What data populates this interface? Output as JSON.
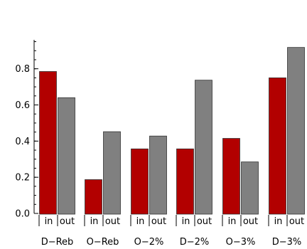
{
  "chart_data": {
    "type": "bar",
    "categories": [
      "D−Reb",
      "O−Reb",
      "O−2%",
      "D−2%",
      "O−3%",
      "D−3%"
    ],
    "series": [
      {
        "name": "in",
        "color": "#b20000",
        "values": [
          0.785,
          0.187,
          0.357,
          0.357,
          0.415,
          0.75
        ]
      },
      {
        "name": "out",
        "color": "#808080",
        "values": [
          0.64,
          0.452,
          0.428,
          0.737,
          0.285,
          0.918
        ]
      }
    ],
    "ylim": [
      0,
      0.96
    ],
    "yticks": [
      0.0,
      0.2,
      0.4,
      0.6,
      0.8
    ],
    "ytick_labels": [
      "0.0",
      "0.2",
      "0.4",
      "0.6",
      "0.8"
    ],
    "minor_tick_step": 0.05,
    "grid": false,
    "title": "",
    "xlabel": "",
    "ylabel": ""
  }
}
